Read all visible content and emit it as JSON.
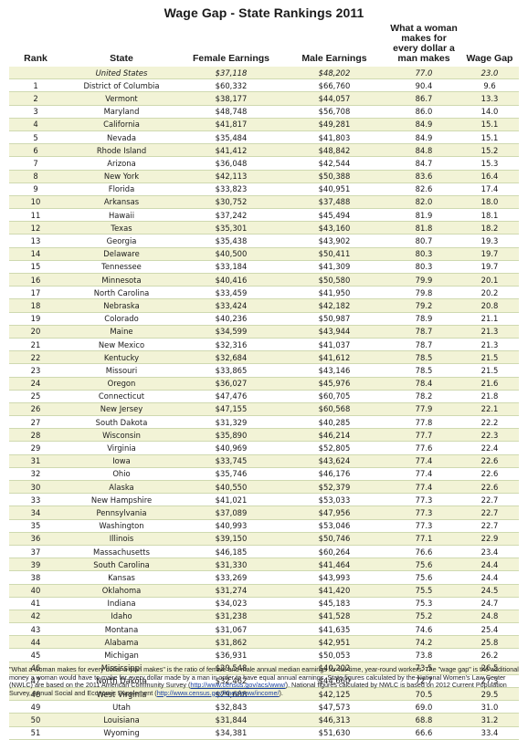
{
  "title": "Wage Gap - State Rankings 2011",
  "headers": {
    "rank": "Rank",
    "state": "State",
    "female": "Female Earnings",
    "male": "Male Earnings",
    "ratio": "What a woman makes for every dollar a man makes",
    "gap": "Wage Gap"
  },
  "summary": {
    "rank": "",
    "state": "United States",
    "female": "$37,118",
    "male": "$48,202",
    "ratio": "77.0",
    "gap": "23.0"
  },
  "rows": [
    {
      "rank": "1",
      "state": "District of Columbia",
      "female": "$60,332",
      "male": "$66,760",
      "ratio": "90.4",
      "gap": "9.6"
    },
    {
      "rank": "2",
      "state": "Vermont",
      "female": "$38,177",
      "male": "$44,057",
      "ratio": "86.7",
      "gap": "13.3"
    },
    {
      "rank": "3",
      "state": "Maryland",
      "female": "$48,748",
      "male": "$56,708",
      "ratio": "86.0",
      "gap": "14.0"
    },
    {
      "rank": "4",
      "state": "California",
      "female": "$41,817",
      "male": "$49,281",
      "ratio": "84.9",
      "gap": "15.1"
    },
    {
      "rank": "5",
      "state": "Nevada",
      "female": "$35,484",
      "male": "$41,803",
      "ratio": "84.9",
      "gap": "15.1"
    },
    {
      "rank": "6",
      "state": "Rhode Island",
      "female": "$41,412",
      "male": "$48,842",
      "ratio": "84.8",
      "gap": "15.2"
    },
    {
      "rank": "7",
      "state": "Arizona",
      "female": "$36,048",
      "male": "$42,544",
      "ratio": "84.7",
      "gap": "15.3"
    },
    {
      "rank": "8",
      "state": "New York",
      "female": "$42,113",
      "male": "$50,388",
      "ratio": "83.6",
      "gap": "16.4"
    },
    {
      "rank": "9",
      "state": "Florida",
      "female": "$33,823",
      "male": "$40,951",
      "ratio": "82.6",
      "gap": "17.4"
    },
    {
      "rank": "10",
      "state": "Arkansas",
      "female": "$30,752",
      "male": "$37,488",
      "ratio": "82.0",
      "gap": "18.0"
    },
    {
      "rank": "11",
      "state": "Hawaii",
      "female": "$37,242",
      "male": "$45,494",
      "ratio": "81.9",
      "gap": "18.1"
    },
    {
      "rank": "12",
      "state": "Texas",
      "female": "$35,301",
      "male": "$43,160",
      "ratio": "81.8",
      "gap": "18.2"
    },
    {
      "rank": "13",
      "state": "Georgia",
      "female": "$35,438",
      "male": "$43,902",
      "ratio": "80.7",
      "gap": "19.3"
    },
    {
      "rank": "14",
      "state": "Delaware",
      "female": "$40,500",
      "male": "$50,411",
      "ratio": "80.3",
      "gap": "19.7"
    },
    {
      "rank": "15",
      "state": "Tennessee",
      "female": "$33,184",
      "male": "$41,309",
      "ratio": "80.3",
      "gap": "19.7"
    },
    {
      "rank": "16",
      "state": "Minnesota",
      "female": "$40,416",
      "male": "$50,580",
      "ratio": "79.9",
      "gap": "20.1"
    },
    {
      "rank": "17",
      "state": "North Carolina",
      "female": "$33,459",
      "male": "$41,950",
      "ratio": "79.8",
      "gap": "20.2"
    },
    {
      "rank": "18",
      "state": "Nebraska",
      "female": "$33,424",
      "male": "$42,182",
      "ratio": "79.2",
      "gap": "20.8"
    },
    {
      "rank": "19",
      "state": "Colorado",
      "female": "$40,236",
      "male": "$50,987",
      "ratio": "78.9",
      "gap": "21.1"
    },
    {
      "rank": "20",
      "state": "Maine",
      "female": "$34,599",
      "male": "$43,944",
      "ratio": "78.7",
      "gap": "21.3"
    },
    {
      "rank": "21",
      "state": "New Mexico",
      "female": "$32,316",
      "male": "$41,037",
      "ratio": "78.7",
      "gap": "21.3"
    },
    {
      "rank": "22",
      "state": "Kentucky",
      "female": "$32,684",
      "male": "$41,612",
      "ratio": "78.5",
      "gap": "21.5"
    },
    {
      "rank": "23",
      "state": "Missouri",
      "female": "$33,865",
      "male": "$43,146",
      "ratio": "78.5",
      "gap": "21.5"
    },
    {
      "rank": "24",
      "state": "Oregon",
      "female": "$36,027",
      "male": "$45,976",
      "ratio": "78.4",
      "gap": "21.6"
    },
    {
      "rank": "25",
      "state": "Connecticut",
      "female": "$47,476",
      "male": "$60,705",
      "ratio": "78.2",
      "gap": "21.8"
    },
    {
      "rank": "26",
      "state": "New Jersey",
      "female": "$47,155",
      "male": "$60,568",
      "ratio": "77.9",
      "gap": "22.1"
    },
    {
      "rank": "27",
      "state": "South Dakota",
      "female": "$31,329",
      "male": "$40,285",
      "ratio": "77.8",
      "gap": "22.2"
    },
    {
      "rank": "28",
      "state": "Wisconsin",
      "female": "$35,890",
      "male": "$46,214",
      "ratio": "77.7",
      "gap": "22.3"
    },
    {
      "rank": "29",
      "state": "Virginia",
      "female": "$40,969",
      "male": "$52,805",
      "ratio": "77.6",
      "gap": "22.4"
    },
    {
      "rank": "31",
      "state": "Iowa",
      "female": "$33,745",
      "male": "$43,624",
      "ratio": "77.4",
      "gap": "22.6"
    },
    {
      "rank": "32",
      "state": "Ohio",
      "female": "$35,746",
      "male": "$46,176",
      "ratio": "77.4",
      "gap": "22.6"
    },
    {
      "rank": "30",
      "state": "Alaska",
      "female": "$40,550",
      "male": "$52,379",
      "ratio": "77.4",
      "gap": "22.6"
    },
    {
      "rank": "33",
      "state": "New Hampshire",
      "female": "$41,021",
      "male": "$53,033",
      "ratio": "77.3",
      "gap": "22.7"
    },
    {
      "rank": "34",
      "state": "Pennsylvania",
      "female": "$37,089",
      "male": "$47,956",
      "ratio": "77.3",
      "gap": "22.7"
    },
    {
      "rank": "35",
      "state": "Washington",
      "female": "$40,993",
      "male": "$53,046",
      "ratio": "77.3",
      "gap": "22.7"
    },
    {
      "rank": "36",
      "state": "Illinois",
      "female": "$39,150",
      "male": "$50,746",
      "ratio": "77.1",
      "gap": "22.9"
    },
    {
      "rank": "37",
      "state": "Massachusetts",
      "female": "$46,185",
      "male": "$60,264",
      "ratio": "76.6",
      "gap": "23.4"
    },
    {
      "rank": "39",
      "state": "South Carolina",
      "female": "$31,330",
      "male": "$41,464",
      "ratio": "75.6",
      "gap": "24.4"
    },
    {
      "rank": "38",
      "state": "Kansas",
      "female": "$33,269",
      "male": "$43,993",
      "ratio": "75.6",
      "gap": "24.4"
    },
    {
      "rank": "40",
      "state": "Oklahoma",
      "female": "$31,274",
      "male": "$41,420",
      "ratio": "75.5",
      "gap": "24.5"
    },
    {
      "rank": "41",
      "state": "Indiana",
      "female": "$34,023",
      "male": "$45,183",
      "ratio": "75.3",
      "gap": "24.7"
    },
    {
      "rank": "42",
      "state": "Idaho",
      "female": "$31,238",
      "male": "$41,528",
      "ratio": "75.2",
      "gap": "24.8"
    },
    {
      "rank": "43",
      "state": "Montana",
      "female": "$31,067",
      "male": "$41,635",
      "ratio": "74.6",
      "gap": "25.4"
    },
    {
      "rank": "44",
      "state": "Alabama",
      "female": "$31,862",
      "male": "$42,951",
      "ratio": "74.2",
      "gap": "25.8"
    },
    {
      "rank": "45",
      "state": "Michigan",
      "female": "$36,931",
      "male": "$50,053",
      "ratio": "73.8",
      "gap": "26.2"
    },
    {
      "rank": "46",
      "state": "Mississippi",
      "female": "$29,548",
      "male": "$40,202",
      "ratio": "73.5",
      "gap": "26.5"
    },
    {
      "rank": "47",
      "state": "North Dakota",
      "female": "$32,462",
      "male": "$44,660",
      "ratio": "72.7",
      "gap": "27.3"
    },
    {
      "rank": "48",
      "state": "West Virginia",
      "female": "$29,688",
      "male": "$42,125",
      "ratio": "70.5",
      "gap": "29.5"
    },
    {
      "rank": "49",
      "state": "Utah",
      "female": "$32,843",
      "male": "$47,573",
      "ratio": "69.0",
      "gap": "31.0"
    },
    {
      "rank": "50",
      "state": "Louisiana",
      "female": "$31,844",
      "male": "$46,313",
      "ratio": "68.8",
      "gap": "31.2"
    },
    {
      "rank": "51",
      "state": "Wyoming",
      "female": "$34,381",
      "male": "$51,630",
      "ratio": "66.6",
      "gap": "33.4"
    }
  ],
  "footnote": {
    "text1": "\"What a woman makes for every dollar a man makes\" is the ratio of female and male annual median earnings for full-time, year-round workers.  The \"wage gap\" is the additional money a woman would have to make for every dollar made by a man in order to have equal annual earnings.  State figures calculated by the National Women's Law Center (NWLC) are based on the 2011 American Community Survey (",
    "link1": "http://www.census.gov/acs/www/",
    "text2": ").  National figures calculated by NWLC is based on 2012 Current Population Survey, Annual Social and Economic Supplement (",
    "link2": "http://www.census.gov/hhes/www/income/",
    "text3": ")."
  }
}
